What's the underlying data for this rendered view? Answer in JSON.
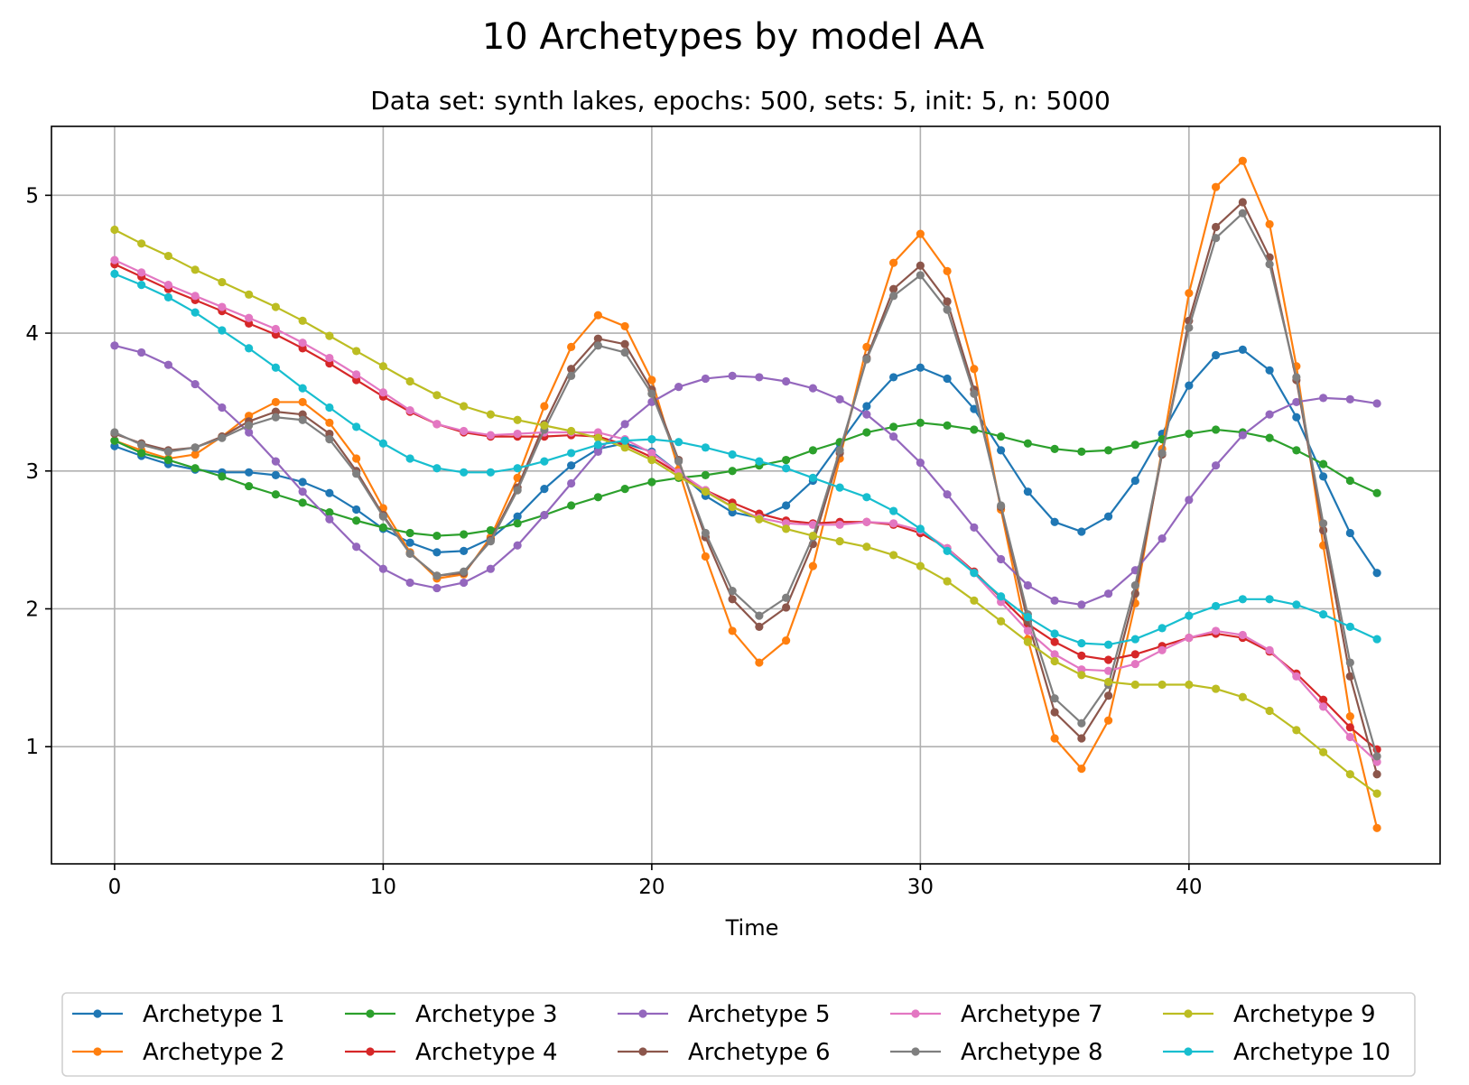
{
  "chart_data": {
    "type": "line",
    "title": "10 Archetypes by model AA",
    "subtitle": "Data set: synth lakes, epochs: 500, sets: 5, init: 5, n: 5000",
    "xlabel": "Time",
    "ylabel": "",
    "xlim": [
      -2.35,
      49.35
    ],
    "ylim": [
      0.15,
      5.5
    ],
    "xticks": [
      0,
      10,
      20,
      30,
      40
    ],
    "yticks": [
      1,
      2,
      3,
      4,
      5
    ],
    "grid": true,
    "legend_position": "bottom",
    "x": [
      0,
      1,
      2,
      3,
      4,
      5,
      6,
      7,
      8,
      9,
      10,
      11,
      12,
      13,
      14,
      15,
      16,
      17,
      18,
      19,
      20,
      21,
      22,
      23,
      24,
      25,
      26,
      27,
      28,
      29,
      30,
      31,
      32,
      33,
      34,
      35,
      36,
      37,
      38,
      39,
      40,
      41,
      42,
      43,
      44,
      45,
      46,
      47
    ],
    "series": [
      {
        "name": "Archetype 1",
        "color": "#1f77b4",
        "values": [
          3.18,
          3.11,
          3.05,
          3.01,
          2.99,
          2.99,
          2.97,
          2.92,
          2.84,
          2.72,
          2.58,
          2.48,
          2.41,
          2.42,
          2.51,
          2.67,
          2.87,
          3.04,
          3.16,
          3.2,
          3.14,
          2.99,
          2.82,
          2.7,
          2.66,
          2.75,
          2.93,
          3.2,
          3.47,
          3.68,
          3.75,
          3.67,
          3.45,
          3.15,
          2.85,
          2.63,
          2.56,
          2.67,
          2.93,
          3.27,
          3.62,
          3.84,
          3.88,
          3.73,
          3.39,
          2.96,
          2.55,
          2.26
        ]
      },
      {
        "name": "Archetype 2",
        "color": "#ff7f0e",
        "values": [
          3.22,
          3.15,
          3.09,
          3.12,
          3.25,
          3.4,
          3.5,
          3.5,
          3.35,
          3.09,
          2.73,
          2.41,
          2.22,
          2.25,
          2.52,
          2.95,
          3.47,
          3.9,
          4.13,
          4.05,
          3.66,
          3.01,
          2.38,
          1.84,
          1.61,
          1.77,
          2.31,
          3.09,
          3.9,
          4.51,
          4.72,
          4.45,
          3.74,
          2.72,
          1.78,
          1.06,
          0.84,
          1.19,
          2.04,
          3.16,
          4.29,
          5.06,
          5.25,
          4.79,
          3.76,
          2.46,
          1.22,
          0.41
        ]
      },
      {
        "name": "Archetype 3",
        "color": "#2ca02c",
        "values": [
          3.22,
          3.13,
          3.08,
          3.02,
          2.96,
          2.89,
          2.83,
          2.77,
          2.7,
          2.64,
          2.59,
          2.55,
          2.53,
          2.54,
          2.57,
          2.62,
          2.68,
          2.75,
          2.81,
          2.87,
          2.92,
          2.95,
          2.97,
          3.0,
          3.04,
          3.08,
          3.15,
          3.21,
          3.28,
          3.32,
          3.35,
          3.33,
          3.3,
          3.25,
          3.2,
          3.16,
          3.14,
          3.15,
          3.19,
          3.23,
          3.27,
          3.3,
          3.28,
          3.24,
          3.15,
          3.05,
          2.93,
          2.84
        ]
      },
      {
        "name": "Archetype 4",
        "color": "#d62728",
        "values": [
          4.5,
          4.41,
          4.32,
          4.24,
          4.16,
          4.07,
          3.99,
          3.89,
          3.78,
          3.66,
          3.54,
          3.43,
          3.34,
          3.28,
          3.25,
          3.25,
          3.25,
          3.26,
          3.25,
          3.19,
          3.1,
          2.98,
          2.86,
          2.77,
          2.69,
          2.64,
          2.62,
          2.63,
          2.63,
          2.61,
          2.55,
          2.44,
          2.27,
          2.08,
          1.89,
          1.76,
          1.66,
          1.63,
          1.67,
          1.73,
          1.79,
          1.82,
          1.79,
          1.69,
          1.53,
          1.34,
          1.14,
          0.98
        ]
      },
      {
        "name": "Archetype 5",
        "color": "#9467bd",
        "values": [
          3.91,
          3.86,
          3.77,
          3.63,
          3.46,
          3.28,
          3.07,
          2.85,
          2.65,
          2.45,
          2.29,
          2.19,
          2.15,
          2.19,
          2.29,
          2.46,
          2.68,
          2.91,
          3.14,
          3.34,
          3.5,
          3.61,
          3.67,
          3.69,
          3.68,
          3.65,
          3.6,
          3.52,
          3.41,
          3.25,
          3.06,
          2.83,
          2.59,
          2.36,
          2.17,
          2.06,
          2.03,
          2.11,
          2.28,
          2.51,
          2.79,
          3.04,
          3.26,
          3.41,
          3.5,
          3.53,
          3.52,
          3.49
        ]
      },
      {
        "name": "Archetype 6",
        "color": "#8c564b",
        "values": [
          3.27,
          3.2,
          3.15,
          3.17,
          3.25,
          3.36,
          3.43,
          3.41,
          3.27,
          3.0,
          2.68,
          2.4,
          2.24,
          2.26,
          2.5,
          2.88,
          3.34,
          3.74,
          3.96,
          3.92,
          3.59,
          3.08,
          2.52,
          2.07,
          1.87,
          2.01,
          2.47,
          3.13,
          3.82,
          4.32,
          4.49,
          4.23,
          3.59,
          2.74,
          1.91,
          1.25,
          1.06,
          1.37,
          2.11,
          3.12,
          4.09,
          4.77,
          4.95,
          4.55,
          3.66,
          2.57,
          1.51,
          0.8
        ]
      },
      {
        "name": "Archetype 7",
        "color": "#e377c2",
        "values": [
          4.53,
          4.44,
          4.35,
          4.27,
          4.19,
          4.11,
          4.03,
          3.93,
          3.82,
          3.7,
          3.57,
          3.44,
          3.34,
          3.29,
          3.26,
          3.27,
          3.28,
          3.28,
          3.28,
          3.23,
          3.13,
          2.99,
          2.86,
          2.74,
          2.66,
          2.62,
          2.61,
          2.61,
          2.63,
          2.62,
          2.57,
          2.44,
          2.26,
          2.05,
          1.84,
          1.67,
          1.56,
          1.55,
          1.6,
          1.7,
          1.79,
          1.84,
          1.81,
          1.7,
          1.51,
          1.29,
          1.07,
          0.89
        ]
      },
      {
        "name": "Archetype 8",
        "color": "#7f7f7f",
        "values": [
          3.28,
          3.19,
          3.14,
          3.17,
          3.24,
          3.33,
          3.39,
          3.37,
          3.23,
          2.98,
          2.67,
          2.4,
          2.24,
          2.27,
          2.49,
          2.86,
          3.3,
          3.69,
          3.91,
          3.86,
          3.56,
          3.07,
          2.55,
          2.13,
          1.95,
          2.08,
          2.52,
          3.15,
          3.81,
          4.27,
          4.42,
          4.17,
          3.56,
          2.75,
          1.96,
          1.35,
          1.17,
          1.45,
          2.17,
          3.13,
          4.04,
          4.69,
          4.87,
          4.5,
          3.68,
          2.62,
          1.61,
          0.93
        ]
      },
      {
        "name": "Archetype 9",
        "color": "#bcbd22",
        "values": [
          4.75,
          4.65,
          4.56,
          4.46,
          4.37,
          4.28,
          4.19,
          4.09,
          3.98,
          3.87,
          3.76,
          3.65,
          3.55,
          3.47,
          3.41,
          3.37,
          3.33,
          3.29,
          3.24,
          3.17,
          3.08,
          2.96,
          2.85,
          2.74,
          2.65,
          2.58,
          2.53,
          2.49,
          2.45,
          2.39,
          2.31,
          2.2,
          2.06,
          1.91,
          1.76,
          1.62,
          1.52,
          1.47,
          1.45,
          1.45,
          1.45,
          1.42,
          1.36,
          1.26,
          1.12,
          0.96,
          0.8,
          0.66
        ]
      },
      {
        "name": "Archetype 10",
        "color": "#17becf",
        "values": [
          4.43,
          4.35,
          4.26,
          4.15,
          4.02,
          3.89,
          3.75,
          3.6,
          3.46,
          3.32,
          3.2,
          3.09,
          3.02,
          2.99,
          2.99,
          3.02,
          3.07,
          3.13,
          3.19,
          3.22,
          3.23,
          3.21,
          3.17,
          3.12,
          3.07,
          3.02,
          2.95,
          2.88,
          2.81,
          2.71,
          2.58,
          2.42,
          2.26,
          2.09,
          1.94,
          1.82,
          1.75,
          1.74,
          1.78,
          1.86,
          1.95,
          2.02,
          2.07,
          2.07,
          2.03,
          1.96,
          1.87,
          1.78
        ]
      }
    ]
  }
}
